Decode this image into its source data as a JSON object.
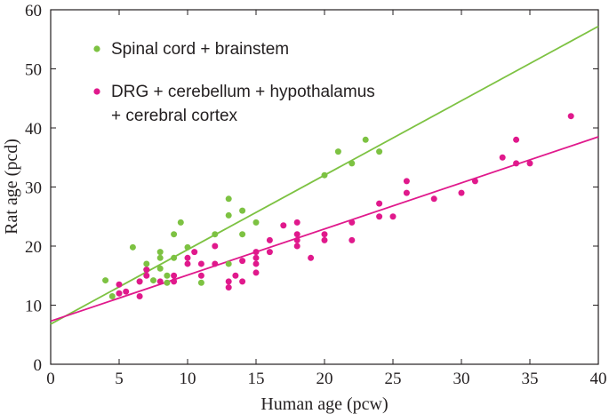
{
  "chart_data": {
    "type": "scatter",
    "title": "",
    "xlabel": "Human age (pcw)",
    "ylabel": "Rat age (pcd)",
    "xlim": [
      0,
      40
    ],
    "ylim": [
      0,
      60
    ],
    "xticks": [
      0,
      5,
      10,
      15,
      20,
      25,
      30,
      35,
      40
    ],
    "yticks": [
      0,
      10,
      20,
      30,
      40,
      50,
      60
    ],
    "legend_position": "top-left",
    "series": [
      {
        "name": "Spinal cord + brainstem",
        "color": "#7dc242",
        "fit_line": [
          [
            0,
            6.8
          ],
          [
            40,
            57.2
          ]
        ],
        "points": [
          [
            4,
            14.2
          ],
          [
            4.5,
            11.5
          ],
          [
            5,
            12
          ],
          [
            6,
            19.8
          ],
          [
            6.5,
            14
          ],
          [
            7,
            17
          ],
          [
            7,
            16
          ],
          [
            7.5,
            14.2
          ],
          [
            8,
            19
          ],
          [
            8,
            18
          ],
          [
            8,
            16.2
          ],
          [
            8.5,
            15
          ],
          [
            8.5,
            13.8
          ],
          [
            9,
            22
          ],
          [
            9,
            18
          ],
          [
            9.5,
            24
          ],
          [
            10,
            19.8
          ],
          [
            11,
            13.8
          ],
          [
            12,
            22
          ],
          [
            13,
            28
          ],
          [
            13,
            25.2
          ],
          [
            13,
            17
          ],
          [
            14,
            26
          ],
          [
            14,
            22
          ],
          [
            15,
            24
          ],
          [
            20,
            32
          ],
          [
            21,
            36
          ],
          [
            22,
            34
          ],
          [
            23,
            38
          ],
          [
            24,
            36
          ]
        ]
      },
      {
        "name": "DRG + cerebellum + hypothalamus + cerebral cortex",
        "legend_lines": [
          "DRG + cerebellum + hypothalamus",
          "+ cerebral cortex"
        ],
        "color": "#e0198c",
        "fit_line": [
          [
            0,
            7.3
          ],
          [
            40,
            38.5
          ]
        ],
        "points": [
          [
            5,
            13.5
          ],
          [
            5,
            12
          ],
          [
            5.5,
            12.3
          ],
          [
            6.5,
            14
          ],
          [
            6.5,
            11.5
          ],
          [
            7,
            15
          ],
          [
            7,
            16
          ],
          [
            8,
            14
          ],
          [
            9,
            14
          ],
          [
            9,
            15
          ],
          [
            10,
            17
          ],
          [
            10,
            18
          ],
          [
            10.5,
            19
          ],
          [
            11,
            17
          ],
          [
            11,
            15
          ],
          [
            12,
            20
          ],
          [
            12,
            17
          ],
          [
            13,
            13
          ],
          [
            13,
            14
          ],
          [
            13.5,
            15
          ],
          [
            14,
            14
          ],
          [
            14,
            17.5
          ],
          [
            15,
            19
          ],
          [
            15,
            18
          ],
          [
            15,
            17
          ],
          [
            15,
            15.5
          ],
          [
            16,
            21
          ],
          [
            16,
            19
          ],
          [
            17,
            23.5
          ],
          [
            18,
            24
          ],
          [
            18,
            22
          ],
          [
            18,
            21
          ],
          [
            18,
            20
          ],
          [
            19,
            18
          ],
          [
            20,
            22
          ],
          [
            20,
            21
          ],
          [
            22,
            24
          ],
          [
            22,
            21
          ],
          [
            24,
            27.2
          ],
          [
            24,
            25
          ],
          [
            25,
            25
          ],
          [
            26,
            31
          ],
          [
            26,
            29
          ],
          [
            28,
            28
          ],
          [
            30,
            29
          ],
          [
            31,
            31
          ],
          [
            33,
            35
          ],
          [
            34,
            38
          ],
          [
            34,
            34
          ],
          [
            35,
            34
          ],
          [
            38,
            42
          ]
        ]
      }
    ]
  }
}
